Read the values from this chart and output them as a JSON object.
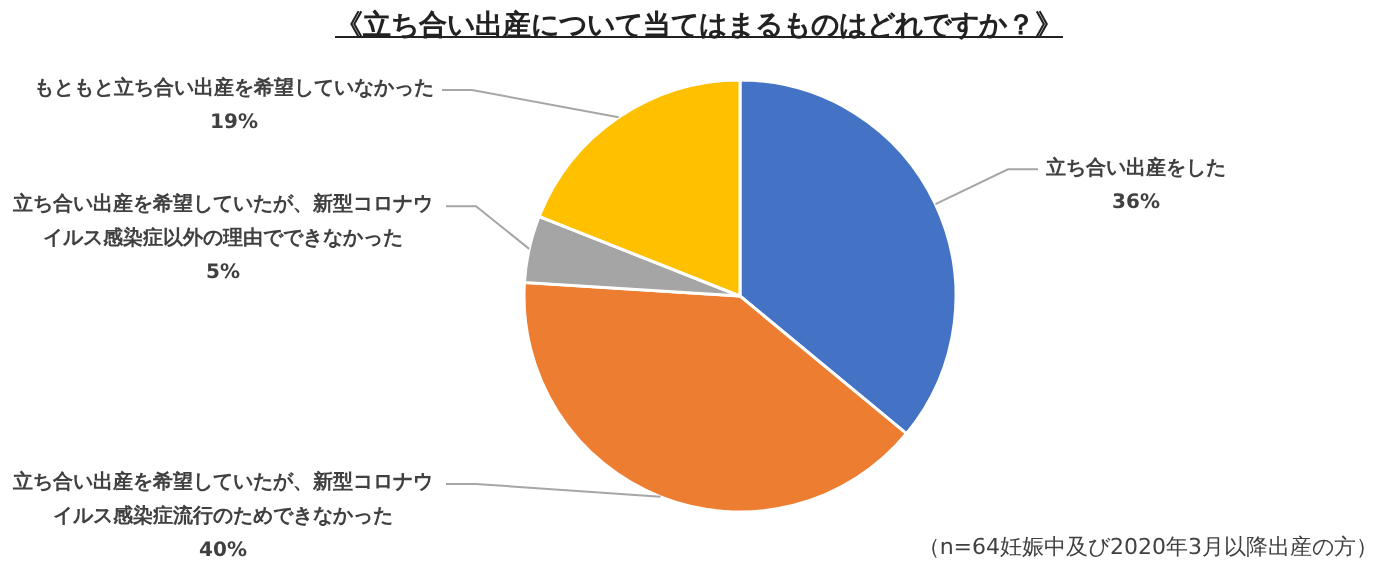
{
  "chart_data": {
    "type": "pie",
    "title": "《立ち合い出産について当てはまるものはどれですか？》",
    "categories": [
      "立ち合い出産をした",
      "立ち合い出産を希望していたが、新型コロナウイルス感染症流行のためできなかった",
      "立ち合い出産を希望していたが、新型コロナウイルス感染症以外の理由でできなかった",
      "もともと立ち合い出産を希望していなかった"
    ],
    "values": [
      36,
      40,
      5,
      19
    ],
    "value_labels": [
      "36%",
      "40%",
      "5%",
      "19%"
    ],
    "colors": [
      "#4472c4",
      "#ed7d31",
      "#a5a5a5",
      "#ffc000"
    ],
    "annotations": [
      "（n=64妊娠中及び2020年3月以降出産の方）"
    ]
  }
}
